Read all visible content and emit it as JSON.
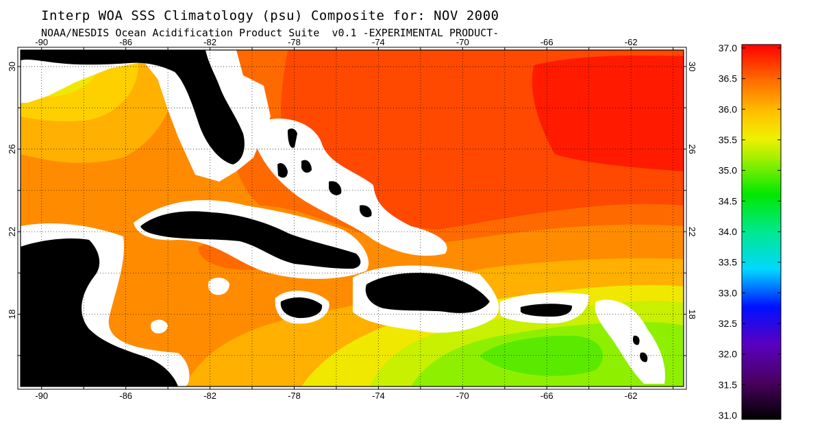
{
  "title": "Interp WOA SSS Climatology (psu) Composite for: NOV 2000",
  "subtitle": "NOAA/NESDIS Ocean Acidification Product Suite  v0.1 -EXPERIMENTAL PRODUCT-",
  "lon_labels": [
    "-90",
    "-86",
    "-82",
    "-78",
    "-74",
    "-70",
    "-66",
    "-62"
  ],
  "lat_labels": [
    "30",
    "26",
    "22",
    "18"
  ],
  "colorbar": {
    "labels": [
      "37.0",
      "36.5",
      "36.0",
      "35.5",
      "35.0",
      "34.5",
      "34.0",
      "33.5",
      "33.0",
      "32.5",
      "32.0",
      "31.5",
      "31.0"
    ]
  },
  "colors": {
    "land": "#000000",
    "coast_mask": "#ffffff",
    "sss_36_8": "#ff1a00",
    "sss_36_4": "#ff4800",
    "sss_36_2": "#ff6a00",
    "sss_36_0": "#ff8c00",
    "sss_35_7": "#ffb000",
    "sss_35_5": "#ffd000",
    "sss_35_3": "#f0e800",
    "sss_35_1": "#c8f000",
    "sss_34_9": "#8ef000",
    "sss_34_7": "#5aea00"
  }
}
